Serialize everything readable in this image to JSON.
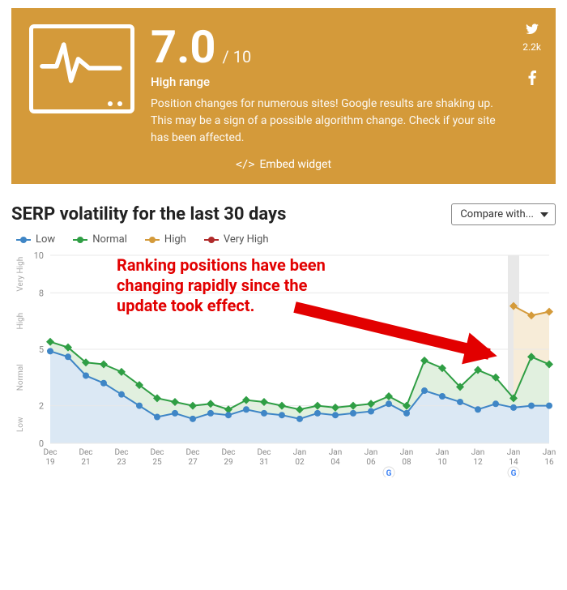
{
  "hero": {
    "background_color": "#d49a3a",
    "score": "7.0",
    "score_max": "/ 10",
    "range_label": "High range",
    "description": "Position changes for numerous sites! Google results are shaking up. This may be a sign of a possible algorithm change. Check if your site has been affected.",
    "twitter_count": "2.2k",
    "embed_label": "Embed widget"
  },
  "chart": {
    "title": "SERP volatility for the last 30 days",
    "compare_label": "Compare with...",
    "legend": {
      "low": {
        "label": "Low",
        "color": "#3f86c6"
      },
      "normal": {
        "label": "Normal",
        "color": "#2f9e44"
      },
      "high": {
        "label": "High",
        "color": "#d49a3a"
      },
      "veryhigh": {
        "label": "Very High",
        "color": "#b02a2a"
      }
    },
    "annotation": "Ranking positions have been changing rapidly since the update took effect.",
    "annotation_color": "#e20000",
    "background_color": "#ffffff",
    "grid_color": "#e8e8e8",
    "ylim": [
      0,
      10
    ],
    "yticks": [
      0,
      2,
      5,
      8,
      10
    ],
    "bands": [
      {
        "label": "Low",
        "from": 0,
        "to": 2,
        "fill": "#dbe8f4"
      },
      {
        "label": "Normal",
        "from": 2,
        "to": 5,
        "fill": "#e1f0df"
      },
      {
        "label": "High",
        "from": 5,
        "to": 8,
        "fill": "#f7ecd8"
      },
      {
        "label": "Very High",
        "from": 8,
        "to": 10,
        "fill": "#f5e0e0"
      }
    ],
    "x_labels": [
      "Dec 19",
      "Dec 21",
      "Dec 23",
      "Dec 25",
      "Dec 27",
      "Dec 29",
      "Dec 31",
      "Jan 02",
      "Jan 04",
      "Jan 06",
      "Jan 08",
      "Jan 10",
      "Jan 12",
      "Jan 14",
      "Jan 16"
    ],
    "highlight_index": 26,
    "series": [
      {
        "name": "line1",
        "color": "#3f86c6",
        "marker": "circle",
        "marker_size": 4,
        "values": [
          4.9,
          4.6,
          3.6,
          3.2,
          2.6,
          2.0,
          1.4,
          1.6,
          1.3,
          1.6,
          1.5,
          1.8,
          1.6,
          1.5,
          1.3,
          1.6,
          1.5,
          1.6,
          1.7,
          2.1,
          1.6,
          2.8,
          2.5,
          2.2,
          1.8,
          2.1,
          1.9,
          2.0,
          2.0
        ]
      },
      {
        "name": "line2",
        "color": "#2f9e44",
        "marker": "diamond",
        "marker_size": 5,
        "values": [
          5.4,
          5.1,
          4.3,
          4.2,
          3.8,
          3.1,
          2.4,
          2.2,
          2.0,
          2.1,
          1.8,
          2.3,
          2.2,
          2.0,
          1.8,
          2.0,
          1.9,
          2.0,
          2.1,
          2.5,
          2.0,
          4.4,
          4.0,
          3.0,
          3.9,
          3.5,
          2.4,
          4.6,
          4.2
        ]
      },
      {
        "name": "line3",
        "color": "#d49a3a",
        "marker": "diamond",
        "marker_size": 5,
        "values": [
          null,
          null,
          null,
          null,
          null,
          null,
          null,
          null,
          null,
          null,
          null,
          null,
          null,
          null,
          null,
          null,
          null,
          null,
          null,
          null,
          null,
          null,
          null,
          null,
          null,
          null,
          7.3,
          6.8,
          7.0
        ]
      }
    ],
    "g_markers": [
      19,
      26
    ]
  }
}
